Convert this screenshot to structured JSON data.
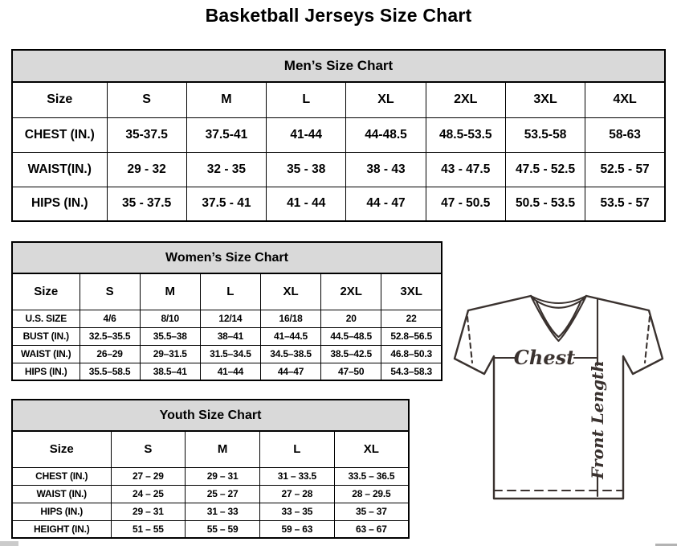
{
  "page": {
    "title": "Basketball Jerseys Size Chart"
  },
  "tables": {
    "men": {
      "title": "Men’s Size Chart",
      "columns": [
        "Size",
        "S",
        "M",
        "L",
        "XL",
        "2XL",
        "3XL",
        "4XL"
      ],
      "rows": [
        {
          "label": "CHEST (IN.)",
          "values": [
            "35-37.5",
            "37.5-41",
            "41-44",
            "44-48.5",
            "48.5-53.5",
            "53.5-58",
            "58-63"
          ]
        },
        {
          "label": "WAIST(IN.)",
          "values": [
            "29 - 32",
            "32 - 35",
            "35 - 38",
            "38 - 43",
            "43 - 47.5",
            "47.5 - 52.5",
            "52.5 - 57"
          ]
        },
        {
          "label": "HIPS (IN.)",
          "values": [
            "35 - 37.5",
            "37.5 - 41",
            "41 - 44",
            "44 - 47",
            "47 - 50.5",
            "50.5 - 53.5",
            "53.5 - 57"
          ]
        }
      ]
    },
    "women": {
      "title": "Women’s Size Chart",
      "columns": [
        "Size",
        "S",
        "M",
        "L",
        "XL",
        "2XL",
        "3XL"
      ],
      "rows": [
        {
          "label": "U.S. SIZE",
          "values": [
            "4/6",
            "8/10",
            "12/14",
            "16/18",
            "20",
            "22"
          ]
        },
        {
          "label": "BUST (IN.)",
          "values": [
            "32.5–35.5",
            "35.5–38",
            "38–41",
            "41–44.5",
            "44.5–48.5",
            "52.8–56.5"
          ]
        },
        {
          "label": "WAIST (IN.)",
          "values": [
            "26–29",
            "29–31.5",
            "31.5–34.5",
            "34.5–38.5",
            "38.5–42.5",
            "46.8–50.3"
          ]
        },
        {
          "label": "HIPS (IN.)",
          "values": [
            "35.5–58.5",
            "38.5–41",
            "41–44",
            "44–47",
            "47–50",
            "54.3–58.3"
          ]
        }
      ]
    },
    "youth": {
      "title": "Youth Size Chart",
      "columns": [
        "Size",
        "S",
        "M",
        "L",
        "XL"
      ],
      "rows": [
        {
          "label": "CHEST (IN.)",
          "values": [
            "27 – 29",
            "29 – 31",
            "31 – 33.5",
            "33.5 – 36.5"
          ]
        },
        {
          "label": "WAIST (IN.)",
          "values": [
            "24 – 25",
            "25 – 27",
            "27 – 28",
            "28 – 29.5"
          ]
        },
        {
          "label": "HIPS (IN.)",
          "values": [
            "29 – 31",
            "31 – 33",
            "33 – 35",
            "35 – 37"
          ]
        },
        {
          "label": "HEIGHT (IN.)",
          "values": [
            "51 – 55",
            "55 – 59",
            "59 – 63",
            "63 – 67"
          ]
        }
      ]
    }
  },
  "diagram": {
    "chest_label": "Chest",
    "front_length_label": "Front Length"
  },
  "colors": {
    "table_band_bg": "#d9d9d9",
    "table_border": "#000000",
    "diagram_stroke": "#3a322f"
  }
}
